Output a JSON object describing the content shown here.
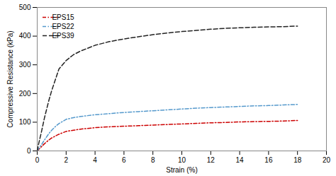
{
  "chart_data": {
    "type": "line",
    "xlabel": "Strain (%)",
    "ylabel": "Compressive Resistance (kPa)",
    "x": [
      0,
      0.1,
      0.3,
      0.5,
      0.8,
      1.0,
      1.3,
      1.5,
      2.0,
      2.5,
      3.0,
      4.0,
      5.0,
      6.0,
      7.0,
      8.0,
      9.0,
      10.0,
      11.0,
      12.0,
      13.0,
      14.0,
      15.0,
      16.0,
      17.0,
      18.0
    ],
    "series": [
      {
        "name": "EPS15",
        "color": "#cc0000",
        "line_style": "dashdot",
        "values": [
          0,
          5,
          15,
          25,
          38,
          45,
          53,
          58,
          68,
          72,
          76,
          81,
          84,
          86,
          88,
          90,
          92,
          94,
          96,
          98,
          99,
          101,
          102,
          103,
          104,
          106
        ]
      },
      {
        "name": "EPS22",
        "color": "#5599cc",
        "line_style": "dashdot",
        "values": [
          0,
          8,
          22,
          38,
          60,
          72,
          87,
          95,
          110,
          116,
          120,
          126,
          130,
          134,
          137,
          140,
          143,
          146,
          149,
          151,
          153,
          155,
          157,
          158,
          160,
          162
        ]
      },
      {
        "name": "EPS39",
        "color": "#222222",
        "line_style": "dashed",
        "values": [
          0,
          25,
          68,
          115,
          175,
          210,
          255,
          285,
          315,
          335,
          348,
          368,
          381,
          390,
          398,
          405,
          411,
          416,
          420,
          424,
          427,
          429,
          431,
          432,
          433,
          435
        ]
      }
    ],
    "xlim": [
      0,
      20
    ],
    "ylim": [
      0,
      500
    ],
    "xticks": [
      0,
      2,
      4,
      6,
      8,
      10,
      12,
      14,
      16,
      18,
      20
    ],
    "yticks": [
      0,
      100,
      200,
      300,
      400,
      500
    ],
    "grid": false,
    "legend": "upper left"
  }
}
